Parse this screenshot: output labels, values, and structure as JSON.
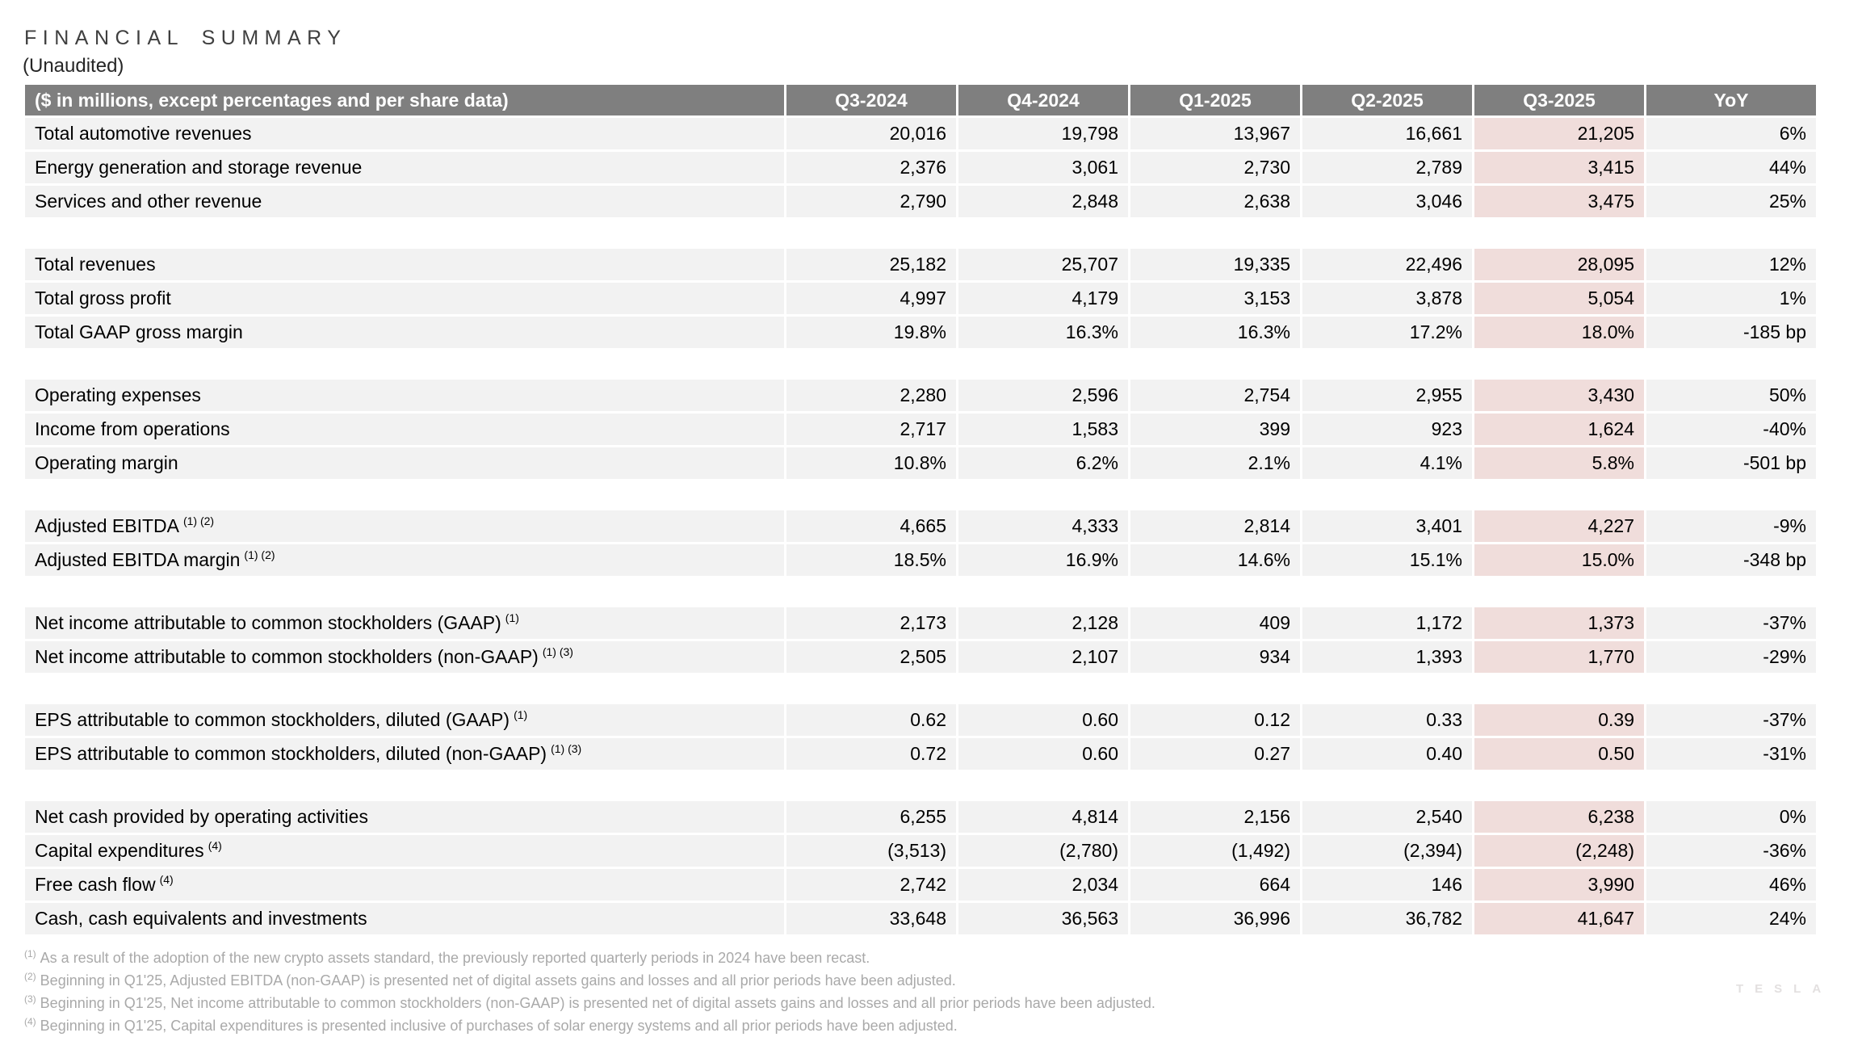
{
  "page": {
    "title": "FINANCIAL SUMMARY",
    "subtitle": "(Unaudited)",
    "watermark": "TESLA"
  },
  "colors": {
    "header_bg": "#7f7f7f",
    "header_text": "#ffffff",
    "row_bg": "#f2f2f2",
    "highlight_bg": "#f0dddb",
    "title_text": "#3f3f3f",
    "subtitle_text": "#262626",
    "body_text": "#000000",
    "footnote_text": "#a9a9a9",
    "watermark_text": "#e3e0e0"
  },
  "table": {
    "unit_header": "($ in millions, except percentages and per share data)",
    "columns": [
      "Q3-2024",
      "Q4-2024",
      "Q1-2025",
      "Q2-2025",
      "Q3-2025",
      "YoY"
    ],
    "highlighted_column": "Q3-2025",
    "groups": [
      {
        "rows": [
          {
            "label": "Total automotive revenues",
            "sup": "",
            "values": [
              "20,016",
              "19,798",
              "13,967",
              "16,661",
              "21,205",
              "6%"
            ]
          },
          {
            "label": "Energy generation and storage revenue",
            "sup": "",
            "values": [
              "2,376",
              "3,061",
              "2,730",
              "2,789",
              "3,415",
              "44%"
            ]
          },
          {
            "label": "Services and other revenue",
            "sup": "",
            "values": [
              "2,790",
              "2,848",
              "2,638",
              "3,046",
              "3,475",
              "25%"
            ]
          }
        ]
      },
      {
        "rows": [
          {
            "label": "Total revenues",
            "sup": "",
            "values": [
              "25,182",
              "25,707",
              "19,335",
              "22,496",
              "28,095",
              "12%"
            ]
          },
          {
            "label": "Total gross profit",
            "sup": "",
            "values": [
              "4,997",
              "4,179",
              "3,153",
              "3,878",
              "5,054",
              "1%"
            ]
          },
          {
            "label": "Total GAAP gross margin",
            "sup": "",
            "values": [
              "19.8%",
              "16.3%",
              "16.3%",
              "17.2%",
              "18.0%",
              "-185 bp"
            ]
          }
        ]
      },
      {
        "rows": [
          {
            "label": "Operating expenses",
            "sup": "",
            "values": [
              "2,280",
              "2,596",
              "2,754",
              "2,955",
              "3,430",
              "50%"
            ]
          },
          {
            "label": "Income from operations",
            "sup": "",
            "values": [
              "2,717",
              "1,583",
              "399",
              "923",
              "1,624",
              "-40%"
            ]
          },
          {
            "label": "Operating margin",
            "sup": "",
            "values": [
              "10.8%",
              "6.2%",
              "2.1%",
              "4.1%",
              "5.8%",
              "-501 bp"
            ]
          }
        ]
      },
      {
        "rows": [
          {
            "label": "Adjusted EBITDA",
            "sup": "(1) (2)",
            "values": [
              "4,665",
              "4,333",
              "2,814",
              "3,401",
              "4,227",
              "-9%"
            ]
          },
          {
            "label": "Adjusted EBITDA margin",
            "sup": "(1) (2)",
            "values": [
              "18.5%",
              "16.9%",
              "14.6%",
              "15.1%",
              "15.0%",
              "-348 bp"
            ]
          }
        ]
      },
      {
        "rows": [
          {
            "label": "Net income attributable to common stockholders (GAAP)",
            "sup": "(1)",
            "values": [
              "2,173",
              "2,128",
              "409",
              "1,172",
              "1,373",
              "-37%"
            ]
          },
          {
            "label": "Net income attributable to common stockholders (non-GAAP)",
            "sup": "(1) (3)",
            "values": [
              "2,505",
              "2,107",
              "934",
              "1,393",
              "1,770",
              "-29%"
            ]
          }
        ]
      },
      {
        "rows": [
          {
            "label": "EPS attributable to common stockholders, diluted (GAAP)",
            "sup": "(1)",
            "values": [
              "0.62",
              "0.60",
              "0.12",
              "0.33",
              "0.39",
              "-37%"
            ]
          },
          {
            "label": "EPS attributable to common stockholders, diluted (non-GAAP)",
            "sup": "(1) (3)",
            "values": [
              "0.72",
              "0.60",
              "0.27",
              "0.40",
              "0.50",
              "-31%"
            ]
          }
        ]
      },
      {
        "rows": [
          {
            "label": "Net cash provided by operating activities",
            "sup": "",
            "values": [
              "6,255",
              "4,814",
              "2,156",
              "2,540",
              "6,238",
              "0%"
            ]
          },
          {
            "label": "Capital expenditures",
            "sup": "(4)",
            "values": [
              "(3,513)",
              "(2,780)",
              "(1,492)",
              "(2,394)",
              "(2,248)",
              "-36%"
            ]
          },
          {
            "label": "Free cash flow",
            "sup": "(4)",
            "values": [
              "2,742",
              "2,034",
              "664",
              "146",
              "3,990",
              "46%"
            ]
          },
          {
            "label": "Cash, cash equivalents and investments",
            "sup": "",
            "values": [
              "33,648",
              "36,563",
              "36,996",
              "36,782",
              "41,647",
              "24%"
            ]
          }
        ]
      }
    ]
  },
  "footnotes": [
    {
      "marker": "(1)",
      "text": "As a result of the adoption of the new crypto assets standard, the previously reported quarterly periods in 2024 have been recast."
    },
    {
      "marker": "(2)",
      "text": "Beginning in Q1'25, Adjusted EBITDA (non-GAAP) is presented net of digital assets gains and losses and all prior periods have been adjusted."
    },
    {
      "marker": "(3)",
      "text": "Beginning in Q1'25, Net income attributable to common stockholders (non-GAAP) is presented net of digital assets gains and losses and all prior periods have been adjusted."
    },
    {
      "marker": "(4)",
      "text": "Beginning in Q1'25, Capital expenditures is presented inclusive of purchases of solar energy systems and all prior periods have been adjusted."
    }
  ]
}
